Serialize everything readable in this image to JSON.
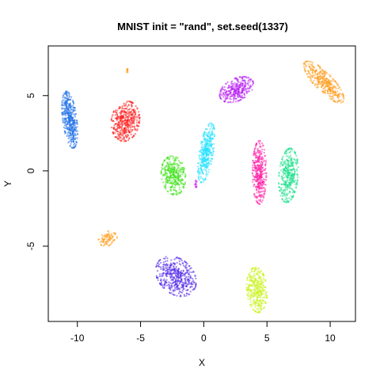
{
  "chart_data": {
    "type": "scatter",
    "title": "MNIST init = \"rand\", set.seed(1337)",
    "xlabel": "X",
    "ylabel": "Y",
    "xlim": [
      -12.3,
      12.0
    ],
    "ylim": [
      -10.0,
      8.3
    ],
    "xticks": [
      -10,
      -5,
      0,
      5,
      10
    ],
    "yticks": [
      -5,
      0,
      5
    ],
    "xtick_labels": [
      "-10",
      "-5",
      "0",
      "5",
      "10"
    ],
    "ytick_labels": [
      "-5",
      "0",
      "5"
    ],
    "grid": false,
    "legend": "none",
    "clusters": [
      {
        "color": "#1e6fe8",
        "center": [
          -10.6,
          3.4
        ],
        "spread": [
          0.55,
          1.9
        ],
        "angle": 0.15,
        "count": 420
      },
      {
        "color": "#ff1a1a",
        "center": [
          -6.2,
          3.3
        ],
        "spread": [
          1.1,
          1.35
        ],
        "angle": -0.3,
        "count": 420
      },
      {
        "color": "#b71cf2",
        "center": [
          2.6,
          5.4
        ],
        "spread": [
          1.4,
          0.75
        ],
        "angle": 0.35,
        "count": 320
      },
      {
        "color": "#ff9a1a",
        "center": [
          9.5,
          5.9
        ],
        "spread": [
          2.0,
          0.65
        ],
        "angle": -0.7,
        "count": 380
      },
      {
        "color": "#ff9a1a",
        "center": [
          -6.05,
          6.7
        ],
        "spread": [
          0.08,
          0.18
        ],
        "angle": 0.0,
        "count": 12
      },
      {
        "color": "#1de0ff",
        "center": [
          0.2,
          1.2
        ],
        "spread": [
          0.55,
          2.0
        ],
        "angle": -0.2,
        "count": 360
      },
      {
        "color": "#3fe21a",
        "center": [
          -2.4,
          -0.3
        ],
        "spread": [
          0.95,
          1.3
        ],
        "angle": 0.2,
        "count": 360
      },
      {
        "color": "#ff1fa6",
        "center": [
          4.4,
          -0.1
        ],
        "spread": [
          0.55,
          2.1
        ],
        "angle": 0.0,
        "count": 380
      },
      {
        "color": "#1de08a",
        "center": [
          6.7,
          -0.3
        ],
        "spread": [
          0.75,
          1.8
        ],
        "angle": -0.1,
        "count": 380
      },
      {
        "color": "#ff9a1a",
        "center": [
          -7.6,
          -4.5
        ],
        "spread": [
          0.75,
          0.5
        ],
        "angle": 0.2,
        "count": 90
      },
      {
        "color": "#4c22e8",
        "center": [
          -2.2,
          -7.0
        ],
        "spread": [
          1.7,
          1.2
        ],
        "angle": -0.5,
        "count": 440
      },
      {
        "color": "#c9f21a",
        "center": [
          4.2,
          -7.9
        ],
        "spread": [
          0.8,
          1.5
        ],
        "angle": 0.1,
        "count": 360
      },
      {
        "color": "#c71cf2",
        "center": [
          -0.6,
          -0.9
        ],
        "spread": [
          0.12,
          0.3
        ],
        "angle": 0.0,
        "count": 14
      }
    ]
  }
}
